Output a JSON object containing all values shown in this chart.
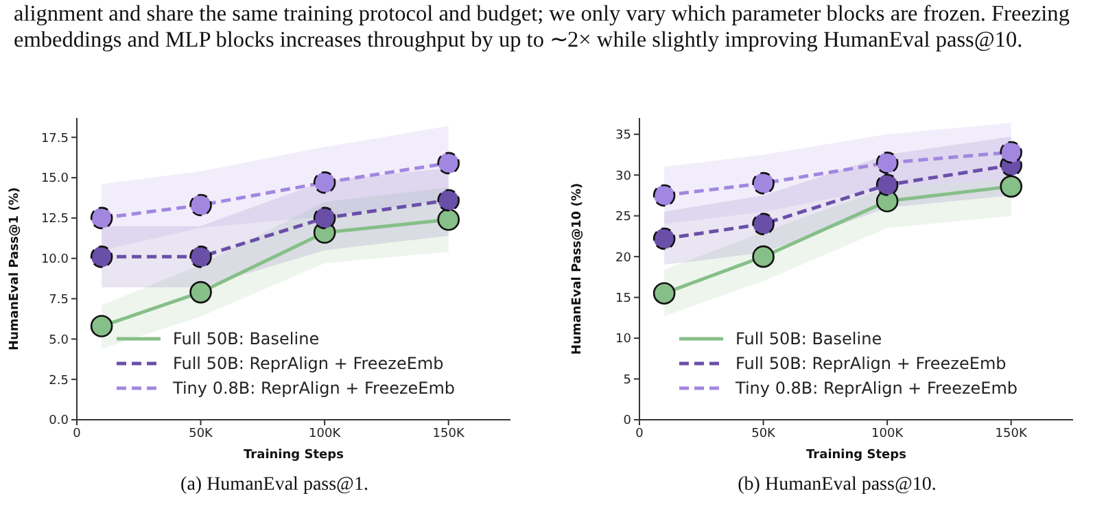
{
  "chart_data": [
    {
      "type": "line",
      "annotations": [
        "alignment and share the same training protocol and budget; we only vary which parameter blocks are frozen. Freezing embeddings and MLP blocks increases throughput by up to ∼2× while slightly improving HumanEval pass@10.",
        "(a) HumanEval pass@1."
      ],
      "xlabel": "Training Steps",
      "ylabel": "HumanEval Pass@1 (%)",
      "x": [
        10000,
        50000,
        100000,
        150000
      ],
      "xlim": [
        0,
        175000
      ],
      "xticks": [
        0,
        {
          "value": 50000,
          "label": "50K"
        },
        {
          "value": 100000,
          "label": "100K"
        },
        {
          "value": 150000,
          "label": "150K"
        }
      ],
      "ylim": [
        0,
        18.7
      ],
      "yticks": [
        {
          "value": 0,
          "label": "0.0"
        },
        {
          "value": 2.5,
          "label": "2.5"
        },
        {
          "value": 5,
          "label": "5.0"
        },
        {
          "value": 7.5,
          "label": "7.5"
        },
        {
          "value": 10,
          "label": "10.0"
        },
        {
          "value": 12.5,
          "label": "12.5"
        },
        {
          "value": 15,
          "label": "15.0"
        },
        {
          "value": 17.5,
          "label": "17.5"
        }
      ],
      "grid": false,
      "legend": "bottom right",
      "marker": "circle",
      "series": [
        {
          "name": "Full 50B: Baseline",
          "color": "#86bf88",
          "line_style": "solid",
          "values": [
            5.8,
            7.9,
            11.6,
            12.4
          ],
          "lower": [
            4.4,
            6.4,
            9.7,
            10.4
          ],
          "upper": [
            7.1,
            9.6,
            13.5,
            14.4
          ]
        },
        {
          "name": "Full 50B: ReprAlign + FreezeEmb",
          "color": "#6a4fa8",
          "line_style": "dashed",
          "values": [
            10.1,
            10.1,
            12.5,
            13.6
          ],
          "lower": [
            8.2,
            8.2,
            10.5,
            11.4
          ],
          "upper": [
            12.0,
            12.0,
            14.8,
            15.6
          ]
        },
        {
          "name": "Tiny 0.8B: ReprAlign + FreezeEmb",
          "color": "#a287e0",
          "line_style": "dashed",
          "values": [
            12.5,
            13.3,
            14.7,
            15.9
          ],
          "lower": [
            10.5,
            11.9,
            12.6,
            13.6
          ],
          "upper": [
            14.6,
            15.4,
            16.9,
            18.2
          ]
        }
      ]
    },
    {
      "type": "line",
      "annotations": [
        "(b) HumanEval pass@10."
      ],
      "xlabel": "Training Steps",
      "ylabel": "HumanEval Pass@10 (%)",
      "x": [
        10000,
        50000,
        100000,
        150000
      ],
      "xlim": [
        0,
        175000
      ],
      "xticks": [
        0,
        {
          "value": 50000,
          "label": "50K"
        },
        {
          "value": 100000,
          "label": "100K"
        },
        {
          "value": 150000,
          "label": "150K"
        }
      ],
      "ylim": [
        0,
        37
      ],
      "yticks": [
        0,
        5,
        10,
        15,
        20,
        25,
        30,
        35
      ],
      "grid": false,
      "legend": "bottom right",
      "marker": "circle",
      "series": [
        {
          "name": "Full 50B: Baseline",
          "color": "#86bf88",
          "line_style": "solid",
          "values": [
            15.5,
            20.0,
            26.8,
            28.6
          ],
          "lower": [
            12.7,
            17.0,
            23.5,
            25.0
          ],
          "upper": [
            18.4,
            23.0,
            28.5,
            29.5
          ]
        },
        {
          "name": "Full 50B: ReprAlign + FreezeEmb",
          "color": "#6a4fa8",
          "line_style": "dashed",
          "values": [
            22.2,
            24.0,
            28.8,
            31.2
          ],
          "lower": [
            19.0,
            20.5,
            26.0,
            27.5
          ],
          "upper": [
            25.5,
            27.5,
            32.5,
            34.7
          ]
        },
        {
          "name": "Tiny 0.8B: ReprAlign + FreezeEmb",
          "color": "#a287e0",
          "line_style": "dashed",
          "values": [
            27.5,
            29.0,
            31.5,
            32.8
          ],
          "lower": [
            24.0,
            25.5,
            28.5,
            29.5
          ],
          "upper": [
            31.0,
            32.5,
            35.0,
            36.4
          ]
        }
      ]
    }
  ]
}
